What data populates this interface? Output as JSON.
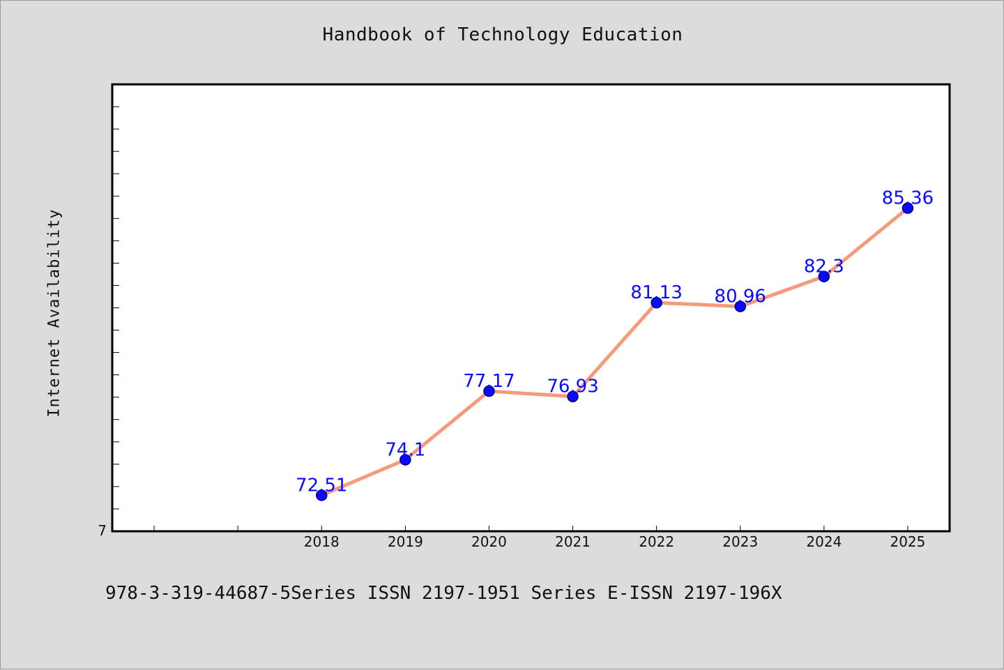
{
  "title": "Handbook of Technology Education",
  "footer": "978-3-319-44687-5Series ISSN 2197-1951 Series E-ISSN 2197-196X",
  "chart_data": {
    "type": "line",
    "title": "Handbook of Technology Education",
    "xlabel": "",
    "ylabel": "Internet Availability",
    "categories": [
      "2018",
      "2019",
      "2020",
      "2021",
      "2022",
      "2023",
      "2024",
      "2025"
    ],
    "series": [
      {
        "values": [
          72.51,
          74.1,
          77.17,
          76.93,
          81.13,
          80.96,
          82.3,
          85.36
        ],
        "data_labels": [
          "72.51",
          "74.1",
          "77.17",
          "76.93",
          "81.13",
          "80.96",
          "82.3",
          "85.36"
        ],
        "line_color": "#f59a7a",
        "marker_color": "#0a0aff"
      }
    ],
    "y_tick_labels": [
      "7"
    ],
    "ylim": [
      70.9,
      90.9
    ],
    "x_range": [
      2015.5,
      2025.5
    ],
    "grid": false,
    "legend": "none",
    "colors": {
      "background": "#dcdcdc",
      "plot_background": "#ffffff",
      "axis": "#000000"
    }
  }
}
